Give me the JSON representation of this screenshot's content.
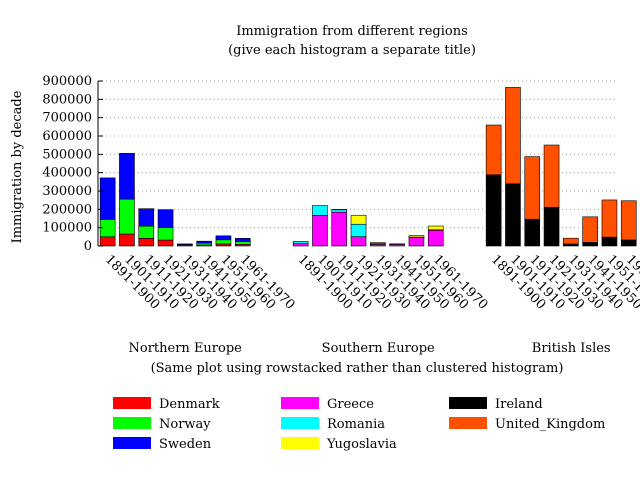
{
  "chart_data": {
    "type": "bar",
    "stacked": true,
    "title": "Immigration from different regions",
    "subtitle": "(give each histogram a separate title)",
    "ylabel": "Immigration by decade",
    "footnote": "(Same plot using rowstacked rather than clustered histogram)",
    "ylim": [
      0,
      900000
    ],
    "yticks": [
      0,
      100000,
      200000,
      300000,
      400000,
      500000,
      600000,
      700000,
      800000,
      900000
    ],
    "categories": [
      "1891-1900",
      "1901-1910",
      "1911-1920",
      "1921-1930",
      "1931-1940",
      "1941-1950",
      "1951-1960",
      "1961-1970"
    ],
    "legend_placement": "bottom",
    "groups": [
      {
        "name": "Northern Europe",
        "series": [
          {
            "name": "Denmark",
            "color": "#ff0000",
            "values": [
              50231,
              65285,
              41983,
              32430,
              2559,
              5393,
              10984,
              9201
            ]
          },
          {
            "name": "Norway",
            "color": "#00ff00",
            "values": [
              95015,
              190505,
              66395,
              68531,
              4740,
              10100,
              22935,
              15484
            ]
          },
          {
            "name": "Sweden",
            "color": "#0000ff",
            "values": [
              226266,
              249534,
              95074,
              97249,
              3960,
              10665,
              21697,
              17116
            ]
          }
        ]
      },
      {
        "name": "Southern Europe",
        "series": [
          {
            "name": "Greece",
            "color": "#ff00ff",
            "values": [
              12732,
              167519,
              184201,
              51084,
              9119,
              8973,
              47608,
              85969
            ]
          },
          {
            "name": "Romania",
            "color": "#00ffff",
            "values": [
              12750,
              53008,
              13311,
              67646,
              3871,
              1076,
              1039,
              2531
            ]
          },
          {
            "name": "Yugoslavia",
            "color": "#ffff00",
            "values": [
              0,
              0,
              1888,
              49064,
              5835,
              1576,
              8225,
              20381
            ]
          }
        ]
      },
      {
        "name": "British Isles",
        "series": [
          {
            "name": "Ireland",
            "color": "#000000",
            "values": [
              388416,
              339065,
              146181,
              211234,
              10973,
              19789,
              48362,
              32966
            ]
          },
          {
            "name": "United_Kingdom",
            "color": "#ff5000",
            "values": [
              271538,
              525950,
              341408,
              339570,
              31572,
              139306,
              202824,
              213822
            ]
          }
        ]
      }
    ]
  }
}
